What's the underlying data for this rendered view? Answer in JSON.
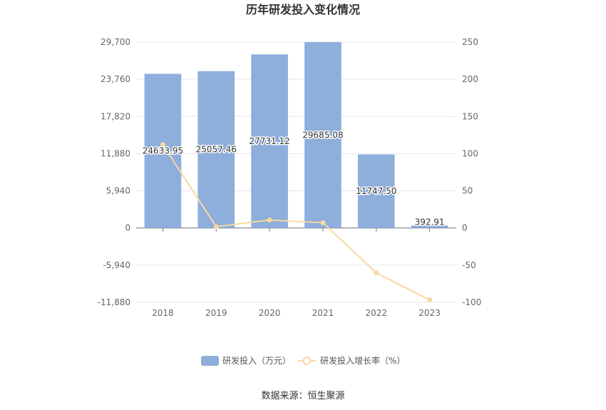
{
  "chart_data": {
    "type": "bar",
    "title": "历年研发投入变化情况",
    "categories": [
      "2018",
      "2019",
      "2020",
      "2021",
      "2022",
      "2023"
    ],
    "series": [
      {
        "name": "研发投入（万元）",
        "type": "bar",
        "axis": "left",
        "color": "#8eaedb",
        "values": [
          24633.95,
          25057.46,
          27731.12,
          29685.08,
          11747.5,
          392.91
        ],
        "labels": [
          "24633.95",
          "25057.46",
          "27731.12",
          "29685.08",
          "11747.50",
          "392.91"
        ]
      },
      {
        "name": "研发投入增长率（%）",
        "type": "line",
        "axis": "right",
        "color": "#f7d9a1",
        "values": [
          112,
          1.7,
          10.7,
          7.1,
          -60.4,
          -96.7
        ]
      }
    ],
    "y_left": {
      "ylim": [
        -11880,
        29700
      ],
      "ticks": [
        29700,
        23760,
        17820,
        11880,
        5940,
        0,
        -5940,
        -11880
      ],
      "tick_labels": [
        "29,700",
        "23,760",
        "17,820",
        "11,880",
        "5,940",
        "0",
        "-5,940",
        "-11,880"
      ]
    },
    "y_right": {
      "ylim": [
        -100,
        250
      ],
      "ticks": [
        250,
        200,
        150,
        100,
        50,
        0,
        -50,
        -100
      ],
      "tick_labels": [
        "250",
        "200",
        "150",
        "100",
        "50",
        "0",
        "-50",
        "-100"
      ]
    },
    "grid": true,
    "legend_position": "bottom",
    "source": "数据来源：恒生聚源"
  }
}
